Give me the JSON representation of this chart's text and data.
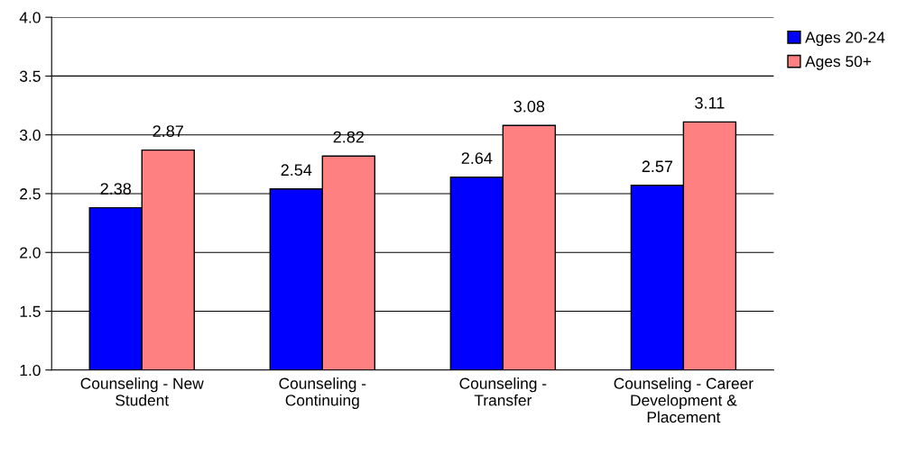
{
  "chart_data": {
    "type": "bar",
    "categories": [
      "Counseling - New Student",
      "Counseling - Continuing",
      "Counseling - Transfer",
      "Counseling - Career Development & Placement"
    ],
    "series": [
      {
        "name": "Ages 20-24",
        "color": "#0000ff",
        "values": [
          2.38,
          2.54,
          2.64,
          2.57
        ]
      },
      {
        "name": "Ages 50+",
        "color": "#ff8080",
        "values": [
          2.87,
          2.82,
          3.08,
          3.11
        ]
      }
    ],
    "ylim": [
      1.0,
      4.0
    ],
    "yticks": [
      {
        "value": 1.0,
        "label": "1.0"
      },
      {
        "value": 1.5,
        "label": "1.5"
      },
      {
        "value": 2.0,
        "label": "2.0"
      },
      {
        "value": 2.5,
        "label": "2.5"
      },
      {
        "value": 3.0,
        "label": "3.0"
      },
      {
        "value": 3.5,
        "label": "3.5"
      },
      {
        "value": 4.0,
        "label": "4.0"
      }
    ],
    "grid": "y",
    "legend": "top right",
    "data_labels": true
  }
}
